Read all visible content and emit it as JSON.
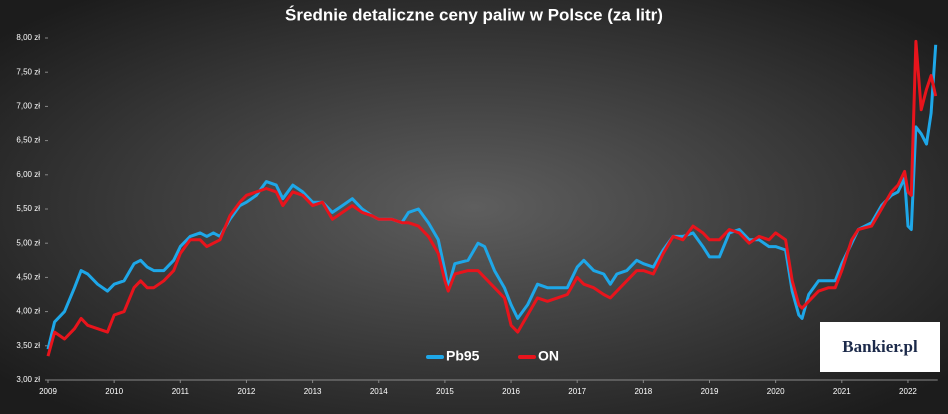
{
  "chart_data": {
    "type": "line",
    "title": "Średnie detaliczne ceny paliw w Polsce (za litr)",
    "watermark": "Bankier.pl",
    "legend": "bottom",
    "xlim": [
      2009,
      2022.45
    ],
    "xticks": [
      2009,
      2010,
      2011,
      2012,
      2013,
      2014,
      2015,
      2016,
      2017,
      2018,
      2019,
      2020,
      2021,
      2022
    ],
    "ylim": [
      3,
      8
    ],
    "yticks": [
      {
        "value": 3,
        "label": "3,00 zł"
      },
      {
        "value": 3.5,
        "label": "3,50 zł"
      },
      {
        "value": 4,
        "label": "4,00 zł"
      },
      {
        "value": 4.5,
        "label": "4,50 zł"
      },
      {
        "value": 5,
        "label": "5,00 zł"
      },
      {
        "value": 5.5,
        "label": "5,50 zł"
      },
      {
        "value": 6,
        "label": "6,00 zł"
      },
      {
        "value": 6.5,
        "label": "6,50 zł"
      },
      {
        "value": 7,
        "label": "7,00 zł"
      },
      {
        "value": 7.5,
        "label": "7,50 zł"
      },
      {
        "value": 8,
        "label": "8,00 zł"
      }
    ],
    "x": [
      2009.0,
      2009.1,
      2009.25,
      2009.4,
      2009.5,
      2009.6,
      2009.75,
      2009.9,
      2010.0,
      2010.15,
      2010.3,
      2010.4,
      2010.5,
      2010.6,
      2010.75,
      2010.9,
      2011.0,
      2011.15,
      2011.3,
      2011.4,
      2011.5,
      2011.6,
      2011.75,
      2011.9,
      2012.0,
      2012.15,
      2012.3,
      2012.45,
      2012.55,
      2012.7,
      2012.85,
      2013.0,
      2013.15,
      2013.3,
      2013.45,
      2013.6,
      2013.75,
      2013.9,
      2014.0,
      2014.2,
      2014.35,
      2014.45,
      2014.6,
      2014.75,
      2014.9,
      2015.0,
      2015.05,
      2015.15,
      2015.35,
      2015.5,
      2015.6,
      2015.75,
      2015.9,
      2016.0,
      2016.1,
      2016.25,
      2016.4,
      2016.55,
      2016.7,
      2016.85,
      2017.0,
      2017.1,
      2017.25,
      2017.4,
      2017.5,
      2017.6,
      2017.75,
      2017.9,
      2018.0,
      2018.15,
      2018.3,
      2018.45,
      2018.6,
      2018.75,
      2018.9,
      2019.0,
      2019.15,
      2019.3,
      2019.45,
      2019.6,
      2019.75,
      2019.9,
      2020.0,
      2020.15,
      2020.25,
      2020.35,
      2020.4,
      2020.5,
      2020.65,
      2020.8,
      2020.9,
      2021.0,
      2021.15,
      2021.25,
      2021.45,
      2021.6,
      2021.75,
      2021.85,
      2021.95,
      2022.0,
      2022.05,
      2022.12,
      2022.2,
      2022.28,
      2022.35,
      2022.42
    ],
    "series": [
      {
        "name": "Pb95",
        "color": "#1ea7e8",
        "values": [
          3.45,
          3.85,
          4.0,
          4.35,
          4.6,
          4.55,
          4.4,
          4.3,
          4.4,
          4.45,
          4.7,
          4.75,
          4.65,
          4.6,
          4.6,
          4.75,
          4.95,
          5.1,
          5.15,
          5.1,
          5.15,
          5.1,
          5.35,
          5.55,
          5.6,
          5.7,
          5.9,
          5.85,
          5.65,
          5.85,
          5.75,
          5.6,
          5.6,
          5.45,
          5.55,
          5.65,
          5.5,
          5.4,
          5.35,
          5.35,
          5.3,
          5.45,
          5.5,
          5.3,
          5.05,
          4.6,
          4.35,
          4.7,
          4.75,
          5.0,
          4.95,
          4.6,
          4.35,
          4.1,
          3.9,
          4.1,
          4.4,
          4.35,
          4.35,
          4.35,
          4.65,
          4.75,
          4.6,
          4.55,
          4.4,
          4.55,
          4.6,
          4.75,
          4.7,
          4.65,
          4.9,
          5.1,
          5.1,
          5.15,
          4.95,
          4.8,
          4.8,
          5.15,
          5.2,
          5.05,
          5.05,
          4.95,
          4.95,
          4.9,
          4.3,
          3.95,
          3.9,
          4.25,
          4.45,
          4.45,
          4.45,
          4.7,
          5.0,
          5.2,
          5.3,
          5.55,
          5.7,
          5.75,
          5.95,
          5.25,
          5.2,
          6.7,
          6.6,
          6.45,
          6.9,
          7.9
        ]
      },
      {
        "name": "ON",
        "color": "#e8141c",
        "values": [
          3.35,
          3.7,
          3.6,
          3.75,
          3.9,
          3.8,
          3.75,
          3.7,
          3.95,
          4.0,
          4.35,
          4.45,
          4.35,
          4.35,
          4.45,
          4.6,
          4.85,
          5.05,
          5.05,
          4.95,
          5.0,
          5.05,
          5.4,
          5.6,
          5.7,
          5.75,
          5.8,
          5.75,
          5.55,
          5.75,
          5.7,
          5.55,
          5.6,
          5.35,
          5.45,
          5.55,
          5.45,
          5.4,
          5.35,
          5.35,
          5.3,
          5.3,
          5.25,
          5.1,
          4.85,
          4.45,
          4.3,
          4.55,
          4.6,
          4.6,
          4.5,
          4.35,
          4.2,
          3.8,
          3.7,
          3.95,
          4.2,
          4.15,
          4.2,
          4.25,
          4.5,
          4.4,
          4.35,
          4.25,
          4.2,
          4.3,
          4.45,
          4.6,
          4.6,
          4.55,
          4.85,
          5.1,
          5.05,
          5.25,
          5.15,
          5.05,
          5.05,
          5.2,
          5.15,
          5.0,
          5.1,
          5.05,
          5.15,
          5.05,
          4.45,
          4.1,
          4.05,
          4.15,
          4.3,
          4.35,
          4.35,
          4.6,
          5.05,
          5.2,
          5.25,
          5.5,
          5.75,
          5.85,
          6.05,
          5.75,
          5.7,
          7.95,
          6.95,
          7.25,
          7.45,
          7.15
        ]
      }
    ]
  }
}
